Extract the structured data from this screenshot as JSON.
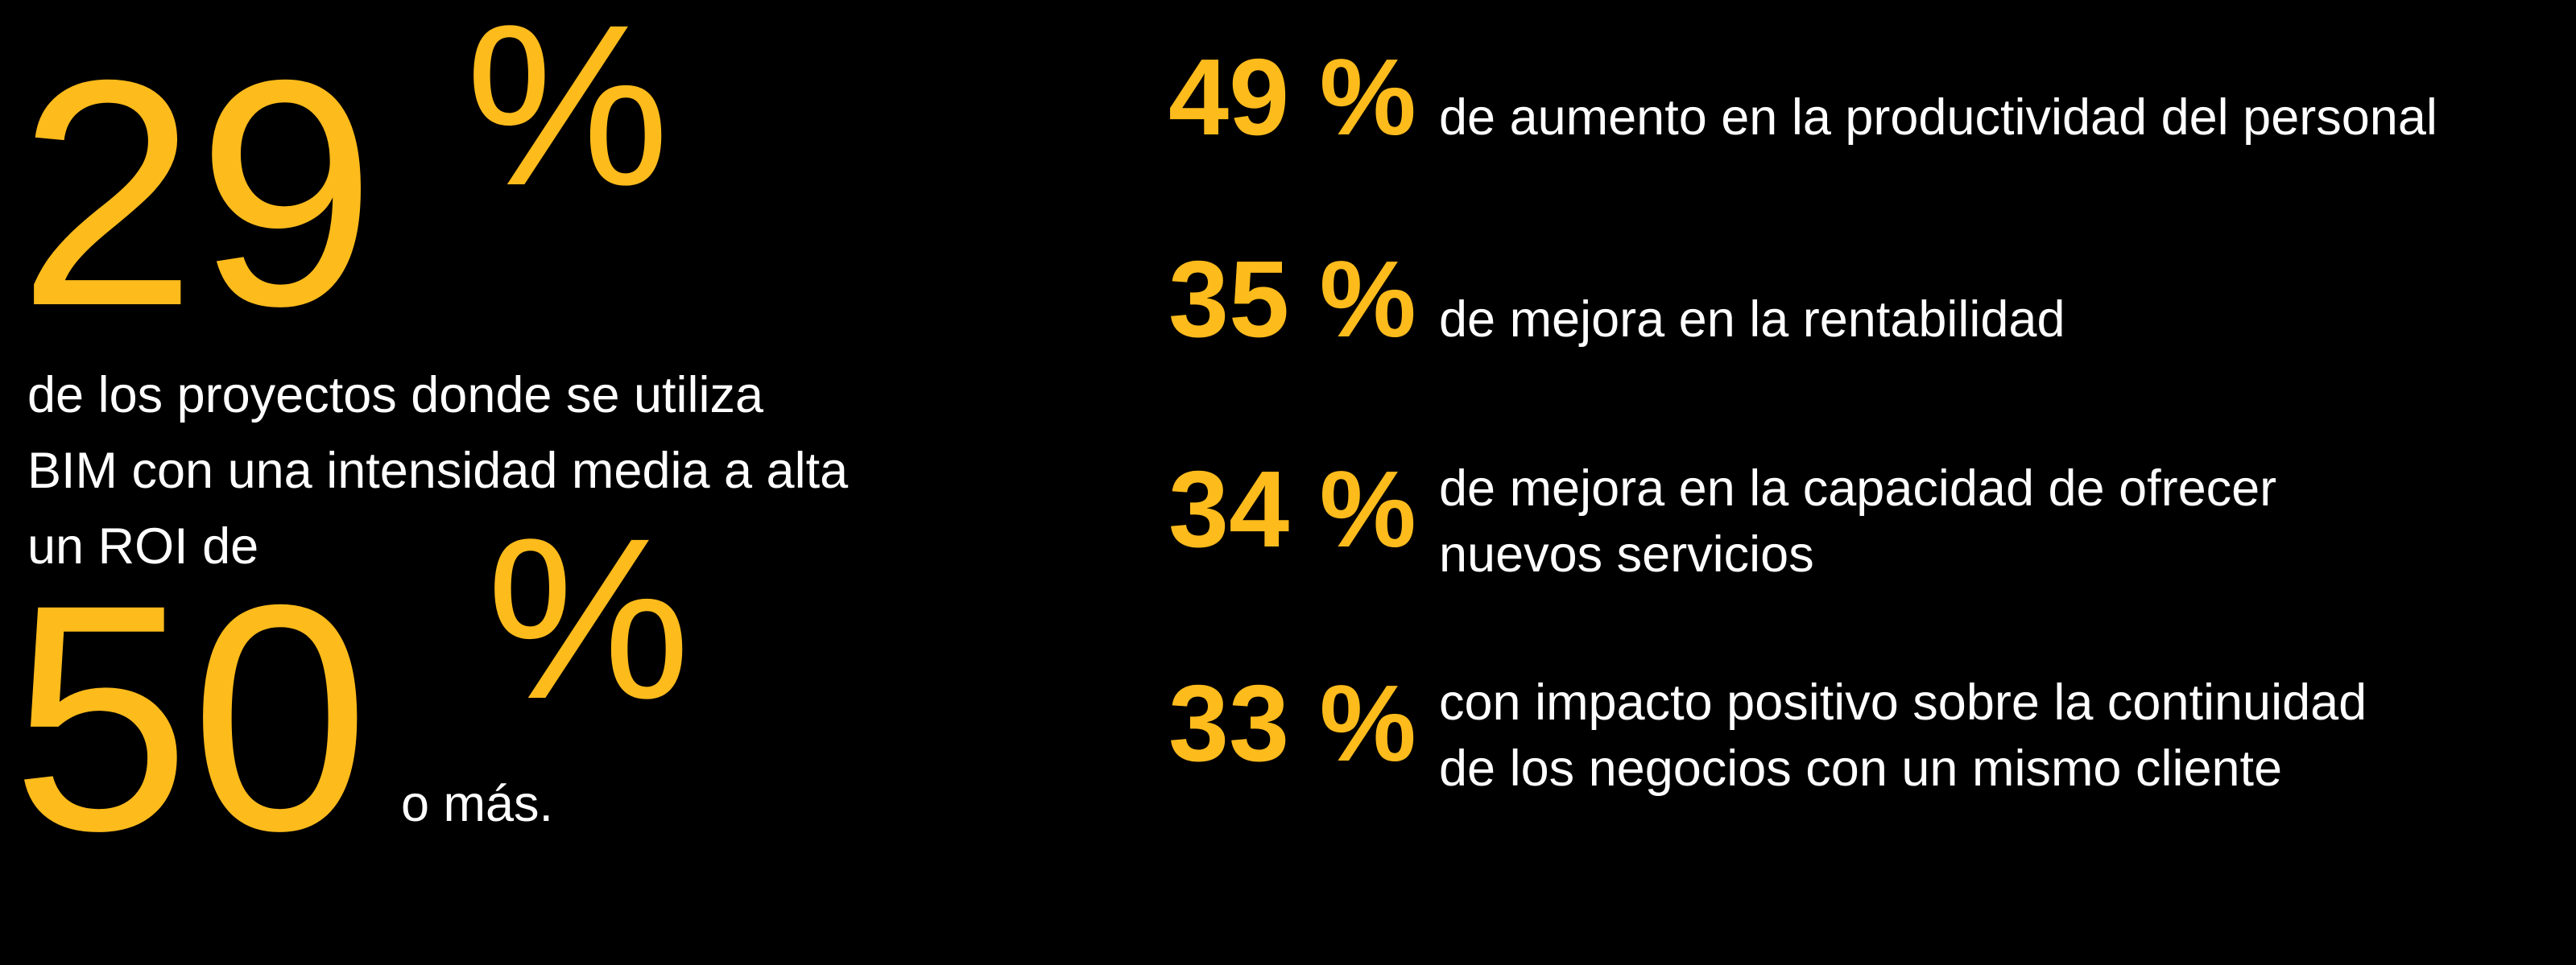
{
  "left": {
    "big_number_1": "29",
    "percent_1": "%",
    "text_lines": [
      "de los proyectos donde se utiliza",
      "BIM con una intensidad media a alta",
      "un ROI de"
    ],
    "big_number_2": "50",
    "percent_2": "%",
    "suffix": "o más."
  },
  "stats": [
    {
      "value": "49 %",
      "lines": [
        "de aumento en la productividad del personal"
      ]
    },
    {
      "value": "35 %",
      "lines": [
        "de mejora en la rentabilidad"
      ]
    },
    {
      "value": "34 %",
      "lines": [
        "de mejora en la capacidad de ofrecer",
        "nuevos servicios"
      ]
    },
    {
      "value": "33 %",
      "lines": [
        "con impacto positivo sobre la continuidad",
        "de los negocios con un mismo cliente"
      ]
    }
  ]
}
